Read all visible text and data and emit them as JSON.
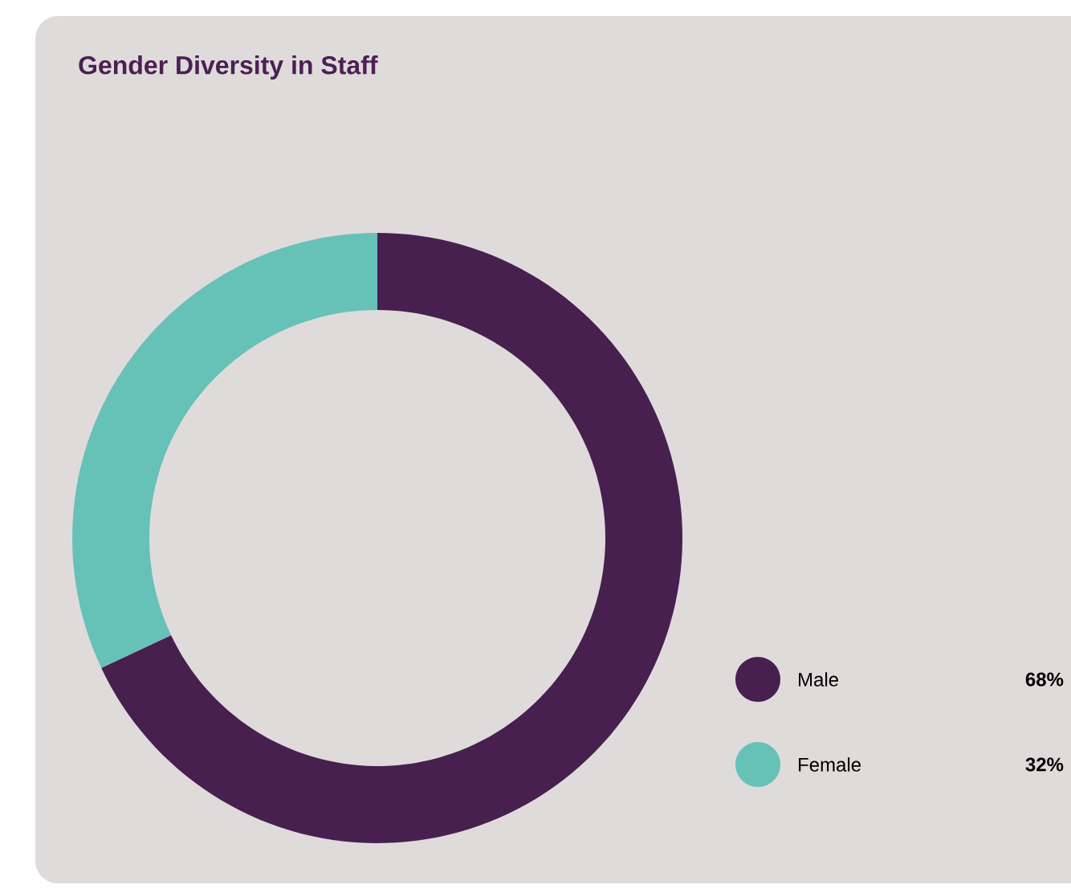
{
  "chart_data": {
    "type": "donut",
    "title": "Gender Diversity in Staff",
    "categories": [
      "Male",
      "Female"
    ],
    "values": [
      68,
      32
    ],
    "colors": [
      "#47204f",
      "#66c1b7"
    ],
    "value_labels": [
      "68%",
      "32%"
    ],
    "legend": "bottom right"
  }
}
